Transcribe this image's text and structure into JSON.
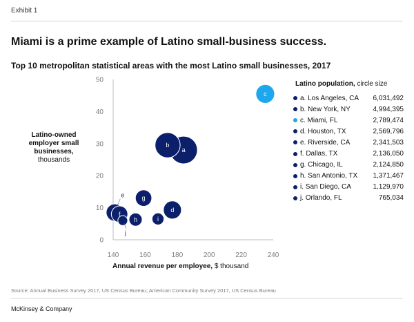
{
  "header": {
    "exhibit": "Exhibit 1"
  },
  "footer": {
    "source": "Source: Annual Business Survey 2017, US Census Bureau; American Community Survey 2017, US Census Bureau",
    "brand": "McKinsey & Company"
  },
  "colors": {
    "navy": "#0b1f6b",
    "highlight": "#1ea7ec",
    "axis": "#b7bdc4"
  },
  "chart_data": {
    "type": "scatter",
    "title": "Miami is a prime example of Latino small-business success.",
    "subtitle": "Top 10 metropolitan statistical areas with the most Latino small businesses, 2017",
    "ylabel_bold": "Latino-owned employer small businesses,",
    "ylabel_unit": "thousands",
    "xlabel_bold": "Annual revenue per employee,",
    "xlabel_unit": "$ thousand",
    "xlim": [
      140,
      240
    ],
    "ylim": [
      0,
      50
    ],
    "x_ticks": [
      "140",
      "160",
      "180",
      "200",
      "220",
      "240"
    ],
    "y_ticks": [
      "0",
      "10",
      "20",
      "30",
      "40",
      "50"
    ],
    "legend_title_bold": "Latino population,",
    "legend_title_rest": "circle size",
    "legend_position": "right",
    "points": [
      {
        "letter": "a",
        "metro": "Los Angeles, CA",
        "population": "6,031,492",
        "pop": 6031492,
        "x": 184,
        "y": 28,
        "highlight": false
      },
      {
        "letter": "b",
        "metro": "New York, NY",
        "population": "4,994,395",
        "pop": 4994395,
        "x": 174,
        "y": 29.5,
        "highlight": false
      },
      {
        "letter": "c",
        "metro": "Miami, FL",
        "population": "2,789,474",
        "pop": 2789474,
        "x": 235,
        "y": 45.5,
        "highlight": true
      },
      {
        "letter": "d",
        "metro": "Houston, TX",
        "population": "2,569,796",
        "pop": 2569796,
        "x": 177,
        "y": 9.3,
        "highlight": false
      },
      {
        "letter": "e",
        "metro": "Riverside, CA",
        "population": "2,341,503",
        "pop": 2341503,
        "x": 141,
        "y": 8.5,
        "highlight": false
      },
      {
        "letter": "f",
        "metro": "Dallas, TX",
        "population": "2,136,050",
        "pop": 2136050,
        "x": 144,
        "y": 8.0,
        "highlight": false
      },
      {
        "letter": "g",
        "metro": "Chicago, IL",
        "population": "2,124,850",
        "pop": 2124850,
        "x": 159,
        "y": 13.0,
        "highlight": false
      },
      {
        "letter": "h",
        "metro": "San Antonio, TX",
        "population": "1,371,467",
        "pop": 1371467,
        "x": 154,
        "y": 6.3,
        "highlight": false
      },
      {
        "letter": "i",
        "metro": "San Diego, CA",
        "population": "1,129,970",
        "pop": 1129970,
        "x": 168,
        "y": 6.5,
        "highlight": false
      },
      {
        "letter": "j",
        "metro": "Orlando, FL",
        "population": "765,034",
        "pop": 765034,
        "x": 146,
        "y": 6.0,
        "highlight": false
      }
    ]
  }
}
